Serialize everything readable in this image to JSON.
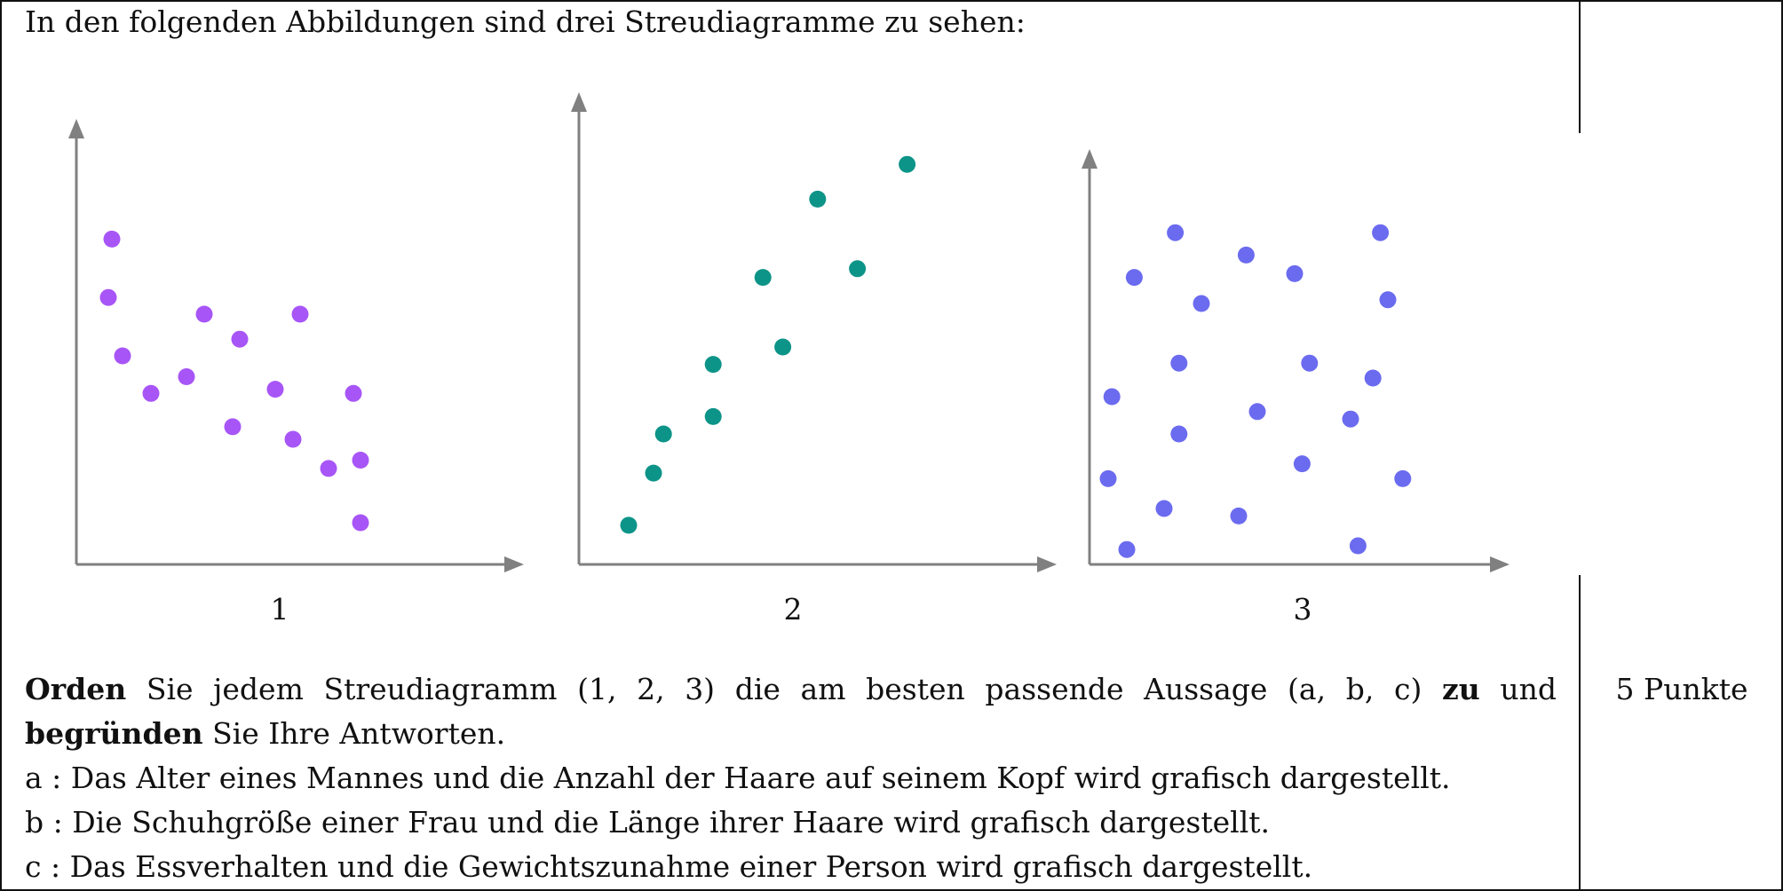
{
  "intro": "In den folgenden Abbildungen sind drei Streudiagramme zu sehen:",
  "chart_data": [
    {
      "type": "scatter",
      "label": "1",
      "color": "#a855f7",
      "axis_color": "#808080",
      "xlim": [
        0,
        100
      ],
      "ylim": [
        0,
        100
      ],
      "points": [
        [
          10,
          78
        ],
        [
          9,
          64
        ],
        [
          13,
          50
        ],
        [
          21,
          41
        ],
        [
          31,
          45
        ],
        [
          44,
          33
        ],
        [
          36,
          60
        ],
        [
          46,
          54
        ],
        [
          56,
          42
        ],
        [
          63,
          60
        ],
        [
          61,
          30
        ],
        [
          71,
          23
        ],
        [
          78,
          41
        ],
        [
          80,
          25
        ],
        [
          80,
          10
        ]
      ]
    },
    {
      "type": "scatter",
      "label": "2",
      "color": "#0d9488",
      "axis_color": "#808080",
      "xlim": [
        0,
        100
      ],
      "ylim": [
        0,
        100
      ],
      "points": [
        [
          10,
          9
        ],
        [
          15,
          21
        ],
        [
          17,
          30
        ],
        [
          27,
          46
        ],
        [
          27,
          34
        ],
        [
          37,
          66
        ],
        [
          41,
          50
        ],
        [
          48,
          84
        ],
        [
          56,
          68
        ],
        [
          66,
          92
        ]
      ]
    },
    {
      "type": "scatter",
      "label": "3",
      "color": "#6b6bf0",
      "axis_color": "#808080",
      "xlim": [
        0,
        100
      ],
      "ylim": [
        0,
        100
      ],
      "points": [
        [
          6,
          45
        ],
        [
          5,
          23
        ],
        [
          10,
          4
        ],
        [
          12,
          77
        ],
        [
          20,
          15
        ],
        [
          23,
          89
        ],
        [
          24,
          54
        ],
        [
          24,
          35
        ],
        [
          30,
          70
        ],
        [
          40,
          13
        ],
        [
          42,
          83
        ],
        [
          45,
          41
        ],
        [
          55,
          78
        ],
        [
          57,
          27
        ],
        [
          59,
          54
        ],
        [
          70,
          39
        ],
        [
          72,
          5
        ],
        [
          76,
          50
        ],
        [
          78,
          89
        ],
        [
          80,
          71
        ],
        [
          84,
          23
        ]
      ]
    }
  ],
  "task": {
    "verb1": "Orden",
    "text1": "Sie jedem Streudiagramm (1, 2, 3) die am besten passende Aussage (a, b, c)",
    "verb2": "zu",
    "text2": "und",
    "verb3": "begründen",
    "text3": "Sie Ihre Antworten.",
    "statements": [
      "a : Das Alter eines Mannes und die Anzahl der Haare auf seinem Kopf wird grafisch dargestellt.",
      "b : Die Schuhgröße einer Frau und die Länge ihrer Haare wird grafisch dargestellt.",
      "c : Das Essverhalten und die Gewichtszunahme einer Person wird grafisch dargestellt."
    ]
  },
  "points_label": "5 Punkte"
}
